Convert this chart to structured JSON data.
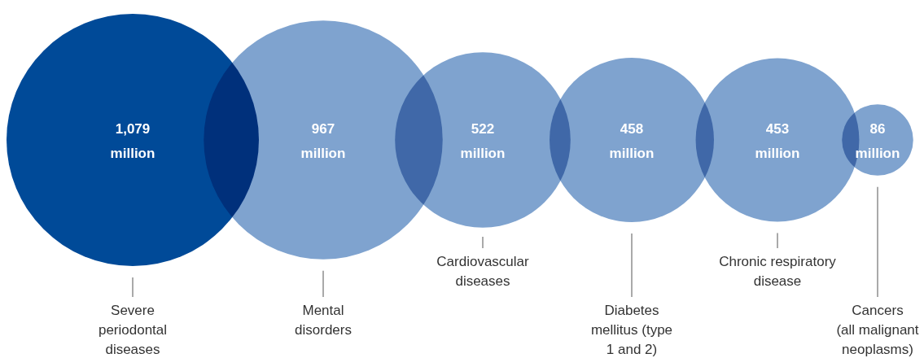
{
  "chart_data": {
    "type": "other",
    "categories": [
      "Severe periodontal diseases",
      "Mental disorders",
      "Cardiovascular diseases",
      "Diabetes mellitus (type 1 and 2)",
      "Chronic respiratory disease",
      "Cancers (all malignant neoplasms)"
    ],
    "values": [
      1079,
      967,
      522,
      458,
      453,
      86
    ],
    "value_labels": [
      "1,079 million",
      "967 million",
      "522 million",
      "458 million",
      "453 million",
      "86 million"
    ],
    "colors": [
      "#004a98",
      "#7fa3cf",
      "#7fa3cf",
      "#7fa3cf",
      "#7fa3cf",
      "#7fa3cf"
    ]
  }
}
